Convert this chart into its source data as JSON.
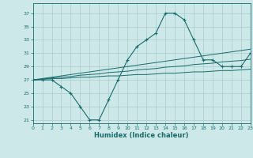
{
  "xlabel": "Humidex (Indice chaleur)",
  "background_color": "#cce8e8",
  "grid_color": "#aacccc",
  "line_color": "#1a6b6b",
  "x_humidex": [
    0,
    1,
    2,
    3,
    4,
    5,
    6,
    7,
    8,
    9,
    10,
    11,
    12,
    13,
    14,
    15,
    16,
    17,
    18,
    19,
    20,
    21,
    22,
    23
  ],
  "y_main": [
    27,
    27,
    27,
    26,
    25,
    23,
    21,
    21,
    24,
    27,
    30,
    32,
    33,
    34,
    37,
    37,
    36,
    33,
    30,
    30,
    29,
    29,
    29,
    31
  ],
  "y_line1": [
    27.0,
    27.1,
    27.2,
    27.2,
    27.3,
    27.4,
    27.4,
    27.5,
    27.6,
    27.6,
    27.7,
    27.8,
    27.8,
    27.9,
    28.0,
    28.0,
    28.1,
    28.2,
    28.2,
    28.3,
    28.4,
    28.4,
    28.5,
    28.6
  ],
  "y_line2": [
    27.0,
    27.1,
    27.3,
    27.4,
    27.5,
    27.7,
    27.8,
    27.9,
    28.1,
    28.2,
    28.3,
    28.5,
    28.6,
    28.7,
    28.9,
    29.0,
    29.1,
    29.3,
    29.4,
    29.5,
    29.7,
    29.8,
    29.9,
    30.1
  ],
  "y_line3": [
    27.0,
    27.2,
    27.4,
    27.6,
    27.8,
    28.0,
    28.2,
    28.4,
    28.6,
    28.8,
    29.0,
    29.2,
    29.4,
    29.6,
    29.8,
    30.0,
    30.2,
    30.4,
    30.6,
    30.8,
    31.0,
    31.2,
    31.4,
    31.6
  ],
  "xlim": [
    0,
    23
  ],
  "ylim": [
    20.5,
    38.5
  ],
  "yticks": [
    21,
    23,
    25,
    27,
    29,
    31,
    33,
    35,
    37
  ],
  "xticks": [
    0,
    1,
    2,
    3,
    4,
    5,
    6,
    7,
    8,
    9,
    10,
    11,
    12,
    13,
    14,
    15,
    16,
    17,
    18,
    19,
    20,
    21,
    22,
    23
  ]
}
